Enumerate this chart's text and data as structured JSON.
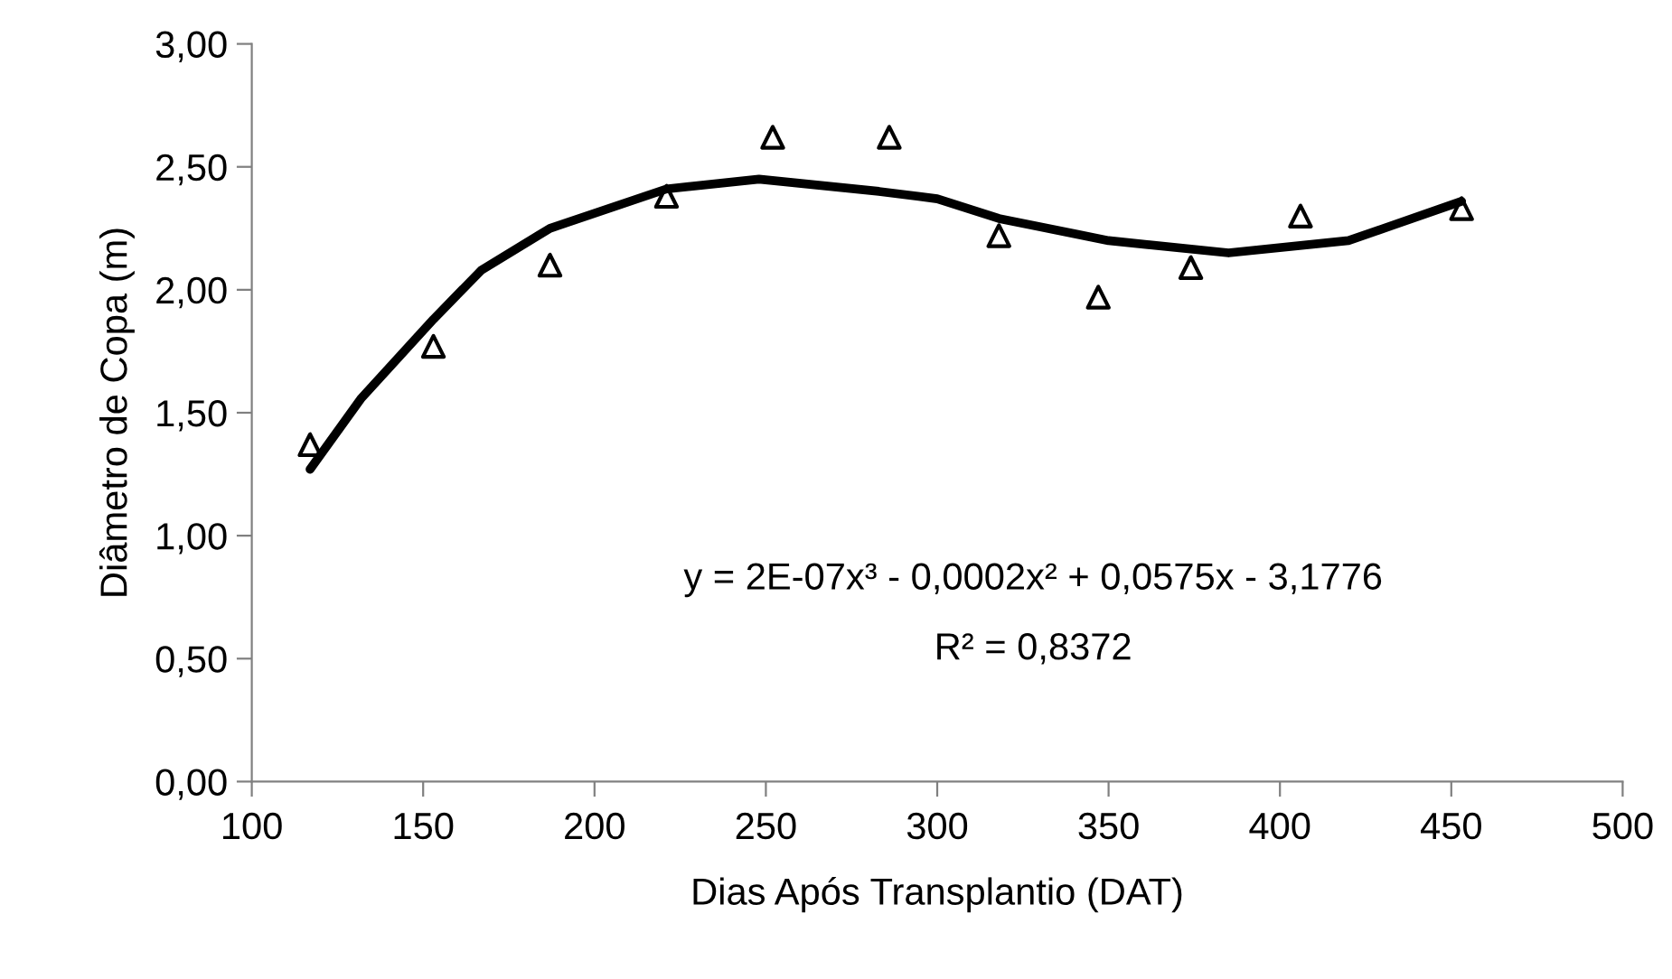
{
  "chart_data": {
    "type": "scatter",
    "xlabel": "Dias Após Transplantio (DAT)",
    "ylabel": "Diâmetro de Copa (m)",
    "xlim": [
      100,
      500
    ],
    "xticks": [
      100,
      150,
      200,
      250,
      300,
      350,
      400,
      450,
      500
    ],
    "ylim": [
      0,
      3
    ],
    "yticks": [
      {
        "value": 0,
        "label": "0,00"
      },
      {
        "value": 0.5,
        "label": "0,50"
      },
      {
        "value": 1,
        "label": "1,00"
      },
      {
        "value": 1.5,
        "label": "1,50"
      },
      {
        "value": 2,
        "label": "2,00"
      },
      {
        "value": 2.5,
        "label": "2,50"
      },
      {
        "value": 3,
        "label": "3,00"
      }
    ],
    "grid": false,
    "legend": false,
    "series": [
      {
        "marker": "triangle",
        "color": "#000000",
        "x": [
          117,
          153,
          187,
          221,
          252,
          286,
          318,
          347,
          374,
          406,
          453
        ],
        "values": [
          1.37,
          1.77,
          2.1,
          2.38,
          2.62,
          2.62,
          2.22,
          1.97,
          2.09,
          2.3,
          2.33
        ]
      },
      {
        "type": "line",
        "marker": "none",
        "line_style": "solid",
        "color": "#000000",
        "x": [
          117,
          132,
          153,
          167,
          187,
          221,
          248,
          283,
          300,
          318,
          350,
          385,
          420,
          453
        ],
        "values": [
          1.27,
          1.56,
          1.88,
          2.08,
          2.25,
          2.41,
          2.45,
          2.4,
          2.37,
          2.29,
          2.2,
          2.15,
          2.2,
          2.36
        ]
      }
    ],
    "annotations": [
      "y = 2E-07x³ - 0,0002x² + 0,0575x - 3,1776",
      "R² = 0,8372"
    ]
  }
}
